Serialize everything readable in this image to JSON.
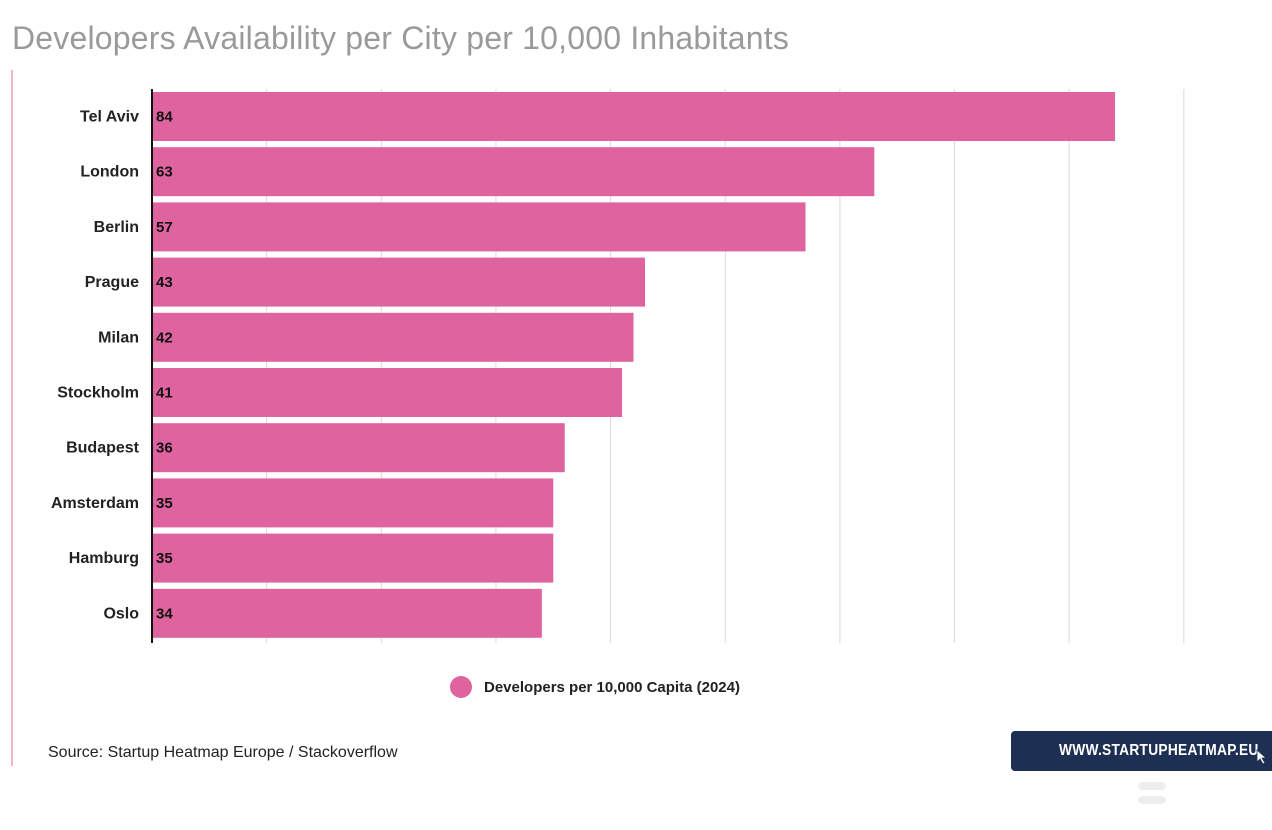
{
  "title": "Developers Availability per City per 10,000 Inhabitants",
  "legend": {
    "label": "Developers per 10,000 Capita (2024)",
    "color": "#de639e"
  },
  "source": "Source: Startup Heatmap Europe / Stackoverflow",
  "brand": {
    "text": "WWW.STARTUPHEATMAP.EU",
    "background": "#1d2f52",
    "icon": "cursor-arrow-icon"
  },
  "colors": {
    "bar": "#de639e",
    "grid": "#d9d9d9",
    "accent": "#f2b3cc",
    "title": "#9a9a9a"
  },
  "chart_data": {
    "type": "bar",
    "orientation": "horizontal",
    "title": "Developers Availability per City per 10,000 Inhabitants",
    "categories": [
      "Tel Aviv",
      "London",
      "Berlin",
      "Prague",
      "Milan",
      "Stockholm",
      "Budapest",
      "Amsterdam",
      "Hamburg",
      "Oslo"
    ],
    "series": [
      {
        "name": "Developers per 10,000 Capita (2024)",
        "values": [
          84,
          63,
          57,
          43,
          42,
          41,
          36,
          35,
          35,
          34
        ]
      }
    ],
    "xlim": [
      0,
      90
    ],
    "grid": true,
    "legend_position": "bottom"
  }
}
